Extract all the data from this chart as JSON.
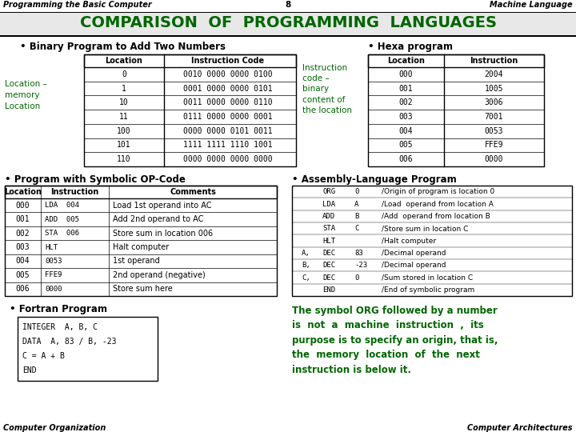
{
  "bg_color": "#ffffff",
  "title_bg_color": "#dcdcdc",
  "title_text": "COMPARISON  OF  PROGRAMMING  LANGUAGES",
  "title_color": "#006600",
  "top_left_text": "Programming the Basic Computer",
  "top_center_text": "8",
  "top_right_text": "Machine Language",
  "bottom_left_text": "Computer Organization",
  "bottom_right_text": "Computer Architectures",
  "green_color": "#006600",
  "black_color": "#000000",
  "binary_rows": [
    [
      "0",
      "0010 0000 0000 0100"
    ],
    [
      "1",
      "0001 0000 0000 0101"
    ],
    [
      "10",
      "0011 0000 0000 0110"
    ],
    [
      "11",
      "0111 0000 0000 0001"
    ],
    [
      "100",
      "0000 0000 0101 0011"
    ],
    [
      "101",
      "1111 1111 1110 1001"
    ],
    [
      "110",
      "0000 0000 0000 0000"
    ]
  ],
  "hexa_rows": [
    [
      "000",
      "2004"
    ],
    [
      "001",
      "1005"
    ],
    [
      "002",
      "3006"
    ],
    [
      "003",
      "7001"
    ],
    [
      "004",
      "0053"
    ],
    [
      "005",
      "FFE9"
    ],
    [
      "006",
      "0000"
    ]
  ],
  "sym_rows": [
    [
      "000",
      "LDA  004",
      "Load 1st operand into AC"
    ],
    [
      "001",
      "ADD  005",
      "Add 2nd operand to AC"
    ],
    [
      "002",
      "STA  006",
      "Store sum in location 006"
    ],
    [
      "003",
      "HLT",
      "Halt computer"
    ],
    [
      "004",
      "0053",
      "1st operand"
    ],
    [
      "005",
      "FFE9",
      "2nd operand (negative)"
    ],
    [
      "006",
      "0000",
      "Store sum here"
    ]
  ],
  "asm_rows": [
    [
      "",
      "ORG",
      "0",
      "/Origin of program is location 0"
    ],
    [
      "",
      "LDA",
      "A",
      "/Load  operand from location A"
    ],
    [
      "",
      "ADD",
      "B",
      "/Add  operand from location B"
    ],
    [
      "",
      "STA",
      "C",
      "/Store sum in location C"
    ],
    [
      "",
      "HLT",
      "",
      "/Halt computer"
    ],
    [
      "A,",
      "DEC",
      "83",
      "/Decimal operand"
    ],
    [
      "B,",
      "DEC",
      "-23",
      "/Decimal operand"
    ],
    [
      "C,",
      "DEC",
      "0",
      "/Sum stored in location C"
    ],
    [
      "",
      "END",
      "",
      "/End of symbolic program"
    ]
  ],
  "fortran_lines": [
    "INTEGER  A, B, C",
    "DATA  A, 83 / B, -23",
    "C = A + B",
    "END"
  ],
  "para_text": "The symbol ORG followed by a number\nis  not  a  machine  instruction  ,  its\npurpose is to specify an origin, that is,\nthe  memory  location  of  the  next\ninstruction is below it."
}
